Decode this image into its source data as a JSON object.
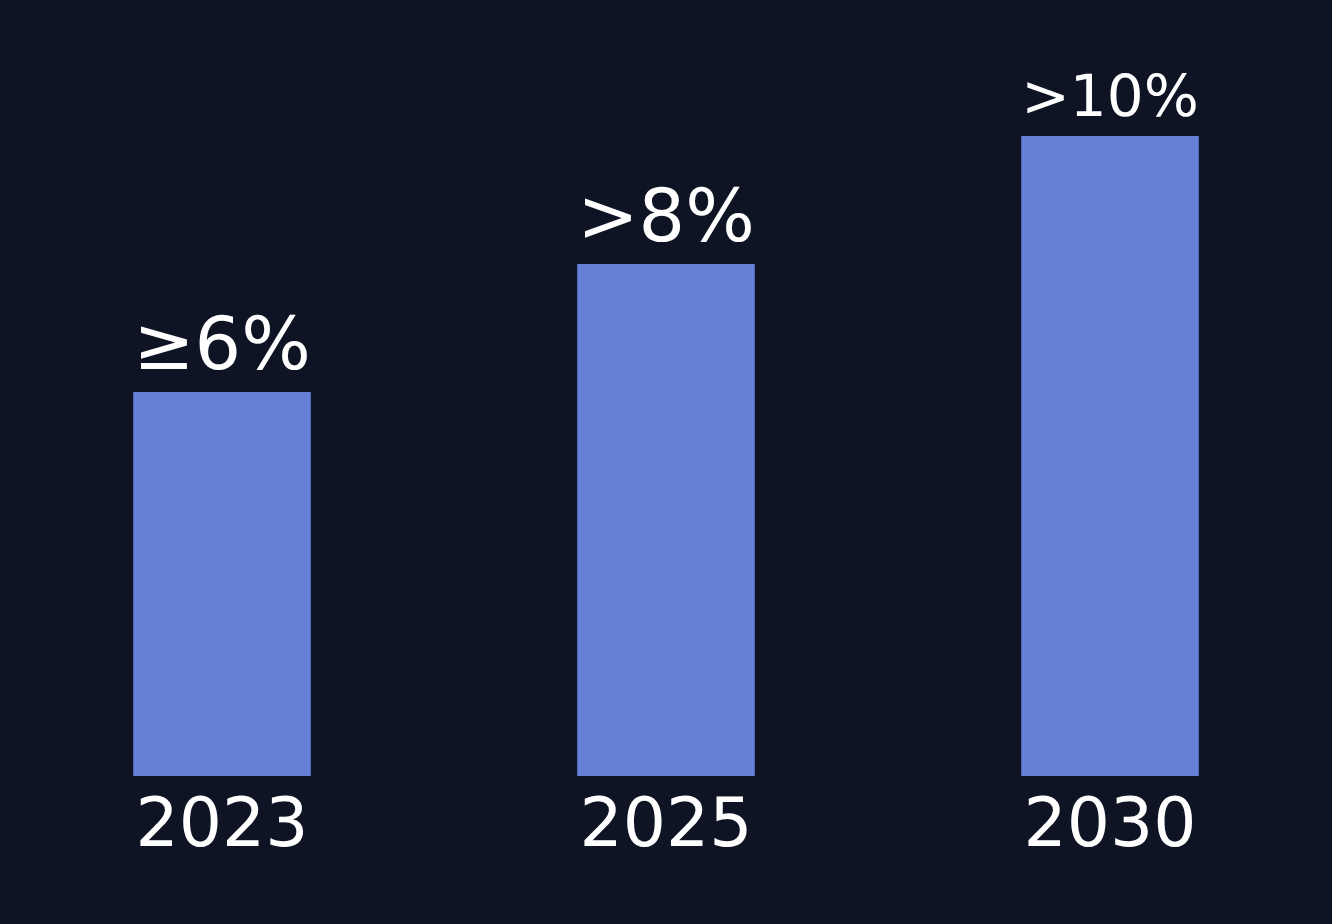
{
  "chart_data": {
    "type": "bar",
    "categories": [
      "2023",
      "2025",
      "2030"
    ],
    "values": [
      6,
      8,
      10
    ],
    "value_labels": [
      "≥6%",
      ">8%",
      ">10%"
    ],
    "color": "#6680d8",
    "grid": false,
    "legend": false
  }
}
